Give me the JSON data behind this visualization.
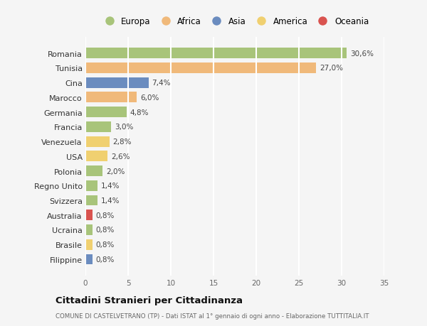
{
  "countries": [
    "Romania",
    "Tunisia",
    "Cina",
    "Marocco",
    "Germania",
    "Francia",
    "Venezuela",
    "USA",
    "Polonia",
    "Regno Unito",
    "Svizzera",
    "Australia",
    "Ucraina",
    "Brasile",
    "Filippine"
  ],
  "values": [
    30.6,
    27.0,
    7.4,
    6.0,
    4.8,
    3.0,
    2.8,
    2.6,
    2.0,
    1.4,
    1.4,
    0.8,
    0.8,
    0.8,
    0.8
  ],
  "labels": [
    "30,6%",
    "27,0%",
    "7,4%",
    "6,0%",
    "4,8%",
    "3,0%",
    "2,8%",
    "2,6%",
    "2,0%",
    "1,4%",
    "1,4%",
    "0,8%",
    "0,8%",
    "0,8%",
    "0,8%"
  ],
  "continents": [
    "Europa",
    "Africa",
    "Asia",
    "Africa",
    "Europa",
    "Europa",
    "America",
    "America",
    "Europa",
    "Europa",
    "Europa",
    "Oceania",
    "Europa",
    "America",
    "Asia"
  ],
  "continent_colors": {
    "Europa": "#a8c47a",
    "Africa": "#f0b97a",
    "Asia": "#6b8cbf",
    "America": "#f0d070",
    "Oceania": "#d9534f"
  },
  "legend_order": [
    "Europa",
    "Africa",
    "Asia",
    "America",
    "Oceania"
  ],
  "title": "Cittadini Stranieri per Cittadinanza",
  "subtitle": "COMUNE DI CASTELVETRANO (TP) - Dati ISTAT al 1° gennaio di ogni anno - Elaborazione TUTTITALIA.IT",
  "xlim": [
    0,
    35
  ],
  "xticks": [
    0,
    5,
    10,
    15,
    20,
    25,
    30,
    35
  ],
  "background_color": "#f5f5f5",
  "grid_color": "#ffffff",
  "bar_height": 0.72
}
